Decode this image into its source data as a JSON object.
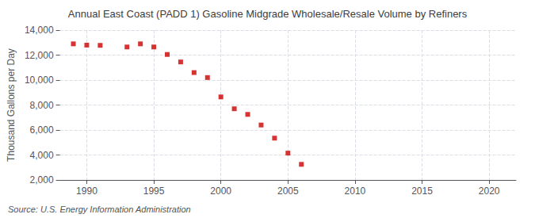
{
  "chart_data": {
    "type": "scatter",
    "title": "Annual East Coast (PADD 1) Gasoline Midgrade Wholesale/Resale Volume by Refiners",
    "ylabel": "Thousand Gallons per Day",
    "source": "Source: U.S. Energy Information Administration",
    "x": [
      1989,
      1990,
      1991,
      1993,
      1994,
      1995,
      1996,
      1997,
      1998,
      1999,
      2000,
      2001,
      2002,
      2003,
      2004,
      2005,
      2006
    ],
    "values": [
      12900,
      12800,
      12780,
      12650,
      12900,
      12650,
      12050,
      11450,
      10600,
      10200,
      8650,
      7700,
      7250,
      6400,
      5350,
      4150,
      3250
    ],
    "color": "#cc0000",
    "marker": "square",
    "xlim": [
      1988,
      2022
    ],
    "xticks": [
      1990,
      1995,
      2000,
      2005,
      2010,
      2015,
      2020
    ],
    "ylim": [
      2000,
      14000
    ],
    "yticks": [
      {
        "value": 2000,
        "label": "2,000"
      },
      {
        "value": 4000,
        "label": "4,000"
      },
      {
        "value": 6000,
        "label": "6,000"
      },
      {
        "value": 8000,
        "label": "8,000"
      },
      {
        "value": 10000,
        "label": "10,000"
      },
      {
        "value": 12000,
        "label": "12,000"
      },
      {
        "value": 14000,
        "label": "14,000"
      }
    ],
    "grid": true
  }
}
